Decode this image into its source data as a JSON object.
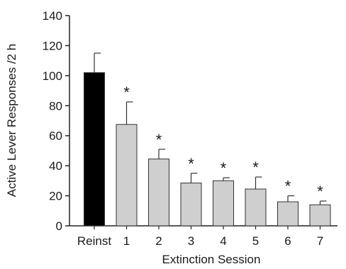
{
  "chart_data": {
    "type": "bar",
    "categories": [
      "Reinst",
      "1",
      "2",
      "3",
      "4",
      "5",
      "6",
      "7"
    ],
    "values": [
      102,
      67.5,
      44.5,
      28.5,
      30,
      24.5,
      16,
      14
    ],
    "errors": [
      13,
      15,
      6.5,
      6.5,
      2,
      8,
      4,
      2.5
    ],
    "significance": [
      "",
      "*",
      "*",
      "*",
      "*",
      "*",
      "*",
      "*"
    ],
    "bar_colors": [
      "#000000",
      "#cfcfcf",
      "#cfcfcf",
      "#cfcfcf",
      "#cfcfcf",
      "#cfcfcf",
      "#cfcfcf",
      "#cfcfcf"
    ],
    "ylim": [
      0,
      140
    ],
    "yticks": [
      0,
      20,
      40,
      60,
      80,
      100,
      120,
      140
    ],
    "xlabel": "Extinction Session",
    "ylabel": "Active Lever Responses /2 h",
    "grid": false
  }
}
